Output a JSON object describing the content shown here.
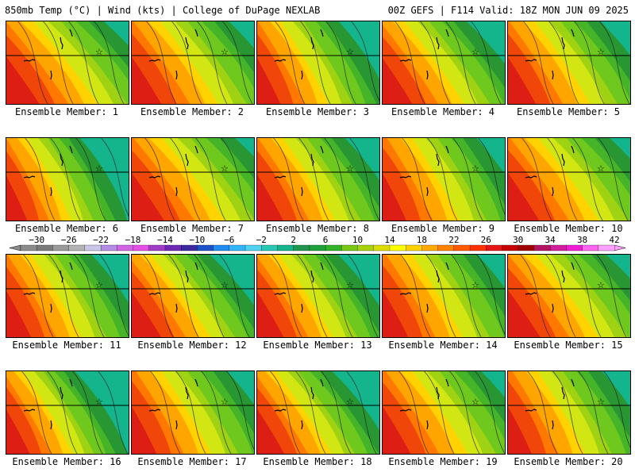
{
  "header": {
    "left_title": "850mb Temp (°C) | Wind (kts) | College of DuPage NEXLAB",
    "right_title": "00Z GEFS | F114 Valid: 18Z MON JUN 09 2025"
  },
  "colorbar": {
    "tick_labels": [
      "−30",
      "−26",
      "−22",
      "−18",
      "−14",
      "−10",
      "−6",
      "−2",
      "2",
      "6",
      "10",
      "14",
      "18",
      "22",
      "26",
      "30",
      "34",
      "38",
      "42"
    ],
    "colors": [
      "#8c8c8c",
      "#7a7a7a",
      "#9a9a9a",
      "#b4b4b4",
      "#c8c8e6",
      "#b48ce6",
      "#d264e6",
      "#e650e6",
      "#a03cc8",
      "#6e28b4",
      "#3c28a0",
      "#1e50c8",
      "#1e8cf0",
      "#32b4fa",
      "#50d2f0",
      "#28c8b4",
      "#14b48c",
      "#1e9650",
      "#1ea03c",
      "#32b428",
      "#78c814",
      "#aad20a",
      "#dcdc00",
      "#ffff00",
      "#ffd200",
      "#ffaa00",
      "#ff8200",
      "#ff5a00",
      "#ff3200",
      "#e61414",
      "#c80000",
      "#a00000",
      "#b41464",
      "#d21e9c",
      "#f01ed2",
      "#ff64f0",
      "#ffa0ff"
    ],
    "min": -32,
    "max": 42,
    "step": 2
  },
  "members": [
    {
      "label": "Ensemble Member: 1",
      "warmth": 0.58
    },
    {
      "label": "Ensemble Member: 2",
      "warmth": 0.55
    },
    {
      "label": "Ensemble Member: 3",
      "warmth": 0.38
    },
    {
      "label": "Ensemble Member: 4",
      "warmth": 0.45
    },
    {
      "label": "Ensemble Member: 5",
      "warmth": 0.5
    },
    {
      "label": "Ensemble Member: 6",
      "warmth": 0.3
    },
    {
      "label": "Ensemble Member: 7",
      "warmth": 0.62
    },
    {
      "label": "Ensemble Member: 8",
      "warmth": 0.45
    },
    {
      "label": "Ensemble Member: 9",
      "warmth": 0.48
    },
    {
      "label": "Ensemble Member: 10",
      "warmth": 0.6
    },
    {
      "label": "Ensemble Member: 11",
      "warmth": 0.42
    },
    {
      "label": "Ensemble Member: 12",
      "warmth": 0.4
    },
    {
      "label": "Ensemble Member: 13",
      "warmth": 0.4
    },
    {
      "label": "Ensemble Member: 14",
      "warmth": 0.5
    },
    {
      "label": "Ensemble Member: 15",
      "warmth": 0.58
    },
    {
      "label": "Ensemble Member: 16",
      "warmth": 0.28
    },
    {
      "label": "Ensemble Member: 17",
      "warmth": 0.5
    },
    {
      "label": "Ensemble Member: 18",
      "warmth": 0.36
    },
    {
      "label": "Ensemble Member: 19",
      "warmth": 0.55
    },
    {
      "label": "Ensemble Member: 20",
      "warmth": 0.48
    }
  ]
}
